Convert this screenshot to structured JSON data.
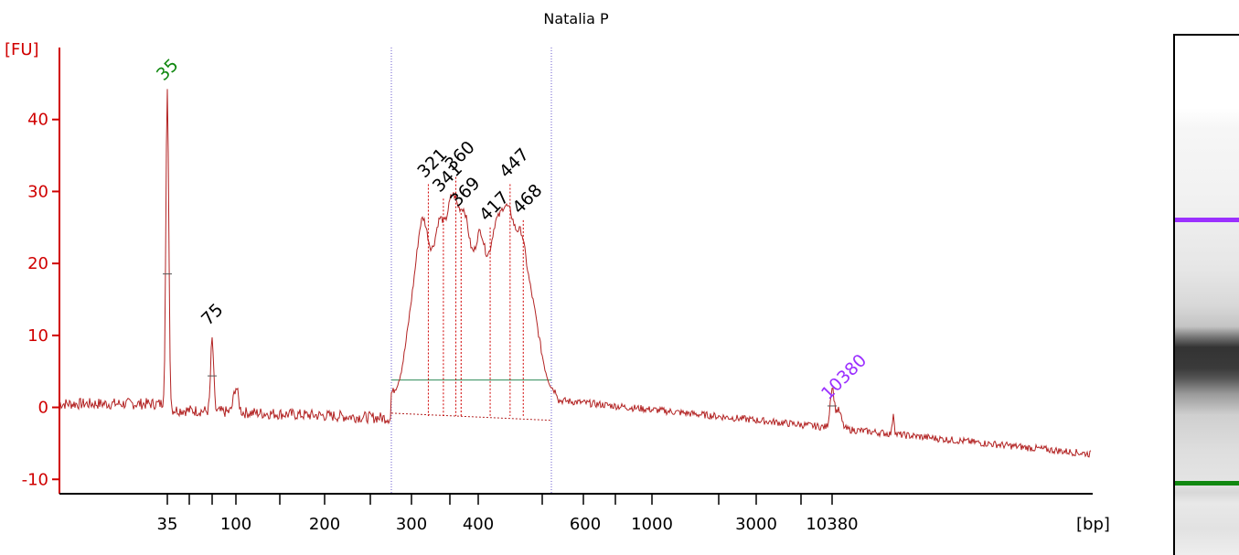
{
  "chart_data": {
    "type": "line",
    "title": "Natalia P",
    "ylabel": "[FU]",
    "xlabel": "[bp]",
    "ylim": [
      -12,
      50
    ],
    "yticks": [
      -10,
      0,
      10,
      20,
      30,
      40
    ],
    "xtick_labels": [
      "35",
      "100",
      "200",
      "300",
      "400",
      "600",
      "1000",
      "3000",
      "10380"
    ],
    "grid": false,
    "colors": {
      "trace": "#b22222",
      "axis": "#d00000",
      "lower_marker": "#118811",
      "upper_marker": "#9b30ff",
      "baseline": "#2e8b57",
      "region": "#6a5acd"
    },
    "peaks": [
      {
        "label": "35",
        "size_bp": 35,
        "fu": 44.5,
        "color": "#118811",
        "role": "lower marker"
      },
      {
        "label": "75",
        "size_bp": 75,
        "fu": 10.5,
        "color": "#000000"
      },
      {
        "label": "321",
        "size_bp": 321,
        "fu": 31,
        "color": "#000000"
      },
      {
        "label": "341",
        "size_bp": 341,
        "fu": 29,
        "color": "#000000"
      },
      {
        "label": "360",
        "size_bp": 360,
        "fu": 32,
        "color": "#000000"
      },
      {
        "label": "369",
        "size_bp": 369,
        "fu": 27,
        "color": "#000000"
      },
      {
        "label": "417",
        "size_bp": 417,
        "fu": 25,
        "color": "#000000"
      },
      {
        "label": "447",
        "size_bp": 447,
        "fu": 31,
        "color": "#000000"
      },
      {
        "label": "468",
        "size_bp": 468,
        "fu": 26,
        "color": "#000000"
      },
      {
        "label": "10380",
        "size_bp": 10380,
        "fu": 0.2,
        "color": "#9b30ff",
        "role": "upper marker"
      }
    ],
    "region": {
      "from_bp": 280,
      "to_bp": 520
    },
    "gel": {
      "bands": [
        "upper marker",
        "lower marker"
      ]
    }
  }
}
